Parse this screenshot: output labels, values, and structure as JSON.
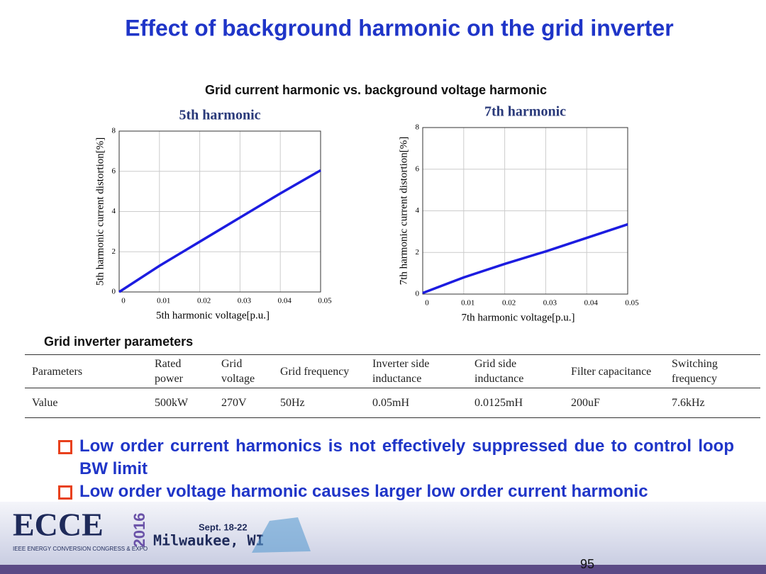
{
  "title": "Effect of background harmonic on the grid inverter",
  "figure_title": "Grid current harmonic vs. background voltage harmonic",
  "chart_data": [
    {
      "type": "line",
      "title": "5th harmonic",
      "x_label": "5th harmonic voltage[p.u.]",
      "y_label": "5th harmonic current distortion[%]",
      "x": [
        0,
        0.01,
        0.02,
        0.03,
        0.04,
        0.05
      ],
      "values": [
        0,
        1.3,
        2.5,
        3.7,
        4.9,
        6.05
      ],
      "color": "#1c1ce0",
      "xlim": [
        0,
        0.05
      ],
      "xticks": [
        0,
        0.01,
        0.02,
        0.03,
        0.04,
        0.05
      ],
      "ylim": [
        0,
        8
      ],
      "yticks": [
        0,
        2,
        4,
        6,
        8
      ],
      "grid": true
    },
    {
      "type": "line",
      "title": "7th harmonic",
      "x_label": "7th harmonic voltage[p.u.]",
      "y_label": "7th harmonic current distortion[%]",
      "x": [
        0,
        0.01,
        0.02,
        0.03,
        0.04,
        0.05
      ],
      "values": [
        0.05,
        0.8,
        1.45,
        2.05,
        2.7,
        3.35
      ],
      "color": "#1c1ce0",
      "xlim": [
        0,
        0.05
      ],
      "xticks": [
        0,
        0.01,
        0.02,
        0.03,
        0.04,
        0.05
      ],
      "ylim": [
        0,
        8
      ],
      "yticks": [
        0,
        2,
        4,
        6,
        8
      ],
      "grid": true
    }
  ],
  "table": {
    "title": "Grid inverter parameters",
    "header": [
      "Parameters",
      "Rated power",
      "Grid voltage",
      "Grid frequency",
      "Inverter side inductance",
      "Grid side inductance",
      "Filter capacitance",
      "Switching frequency"
    ],
    "rows": [
      [
        "Value",
        "500kW",
        "270V",
        "50Hz",
        "0.05mH",
        "0.0125mH",
        "200uF",
        "7.6kHz"
      ]
    ]
  },
  "bullets": [
    "Low order current harmonics is not effectively suppressed due to control loop BW limit",
    "Low order voltage harmonic causes larger low order current harmonic"
  ],
  "footer": {
    "logo": "ECCE",
    "year": "2016",
    "tagline": "IEEE ENERGY CONVERSION CONGRESS & EXPO",
    "dates": "Sept. 18-22",
    "location": "Milwaukee, WI",
    "page": "95"
  }
}
